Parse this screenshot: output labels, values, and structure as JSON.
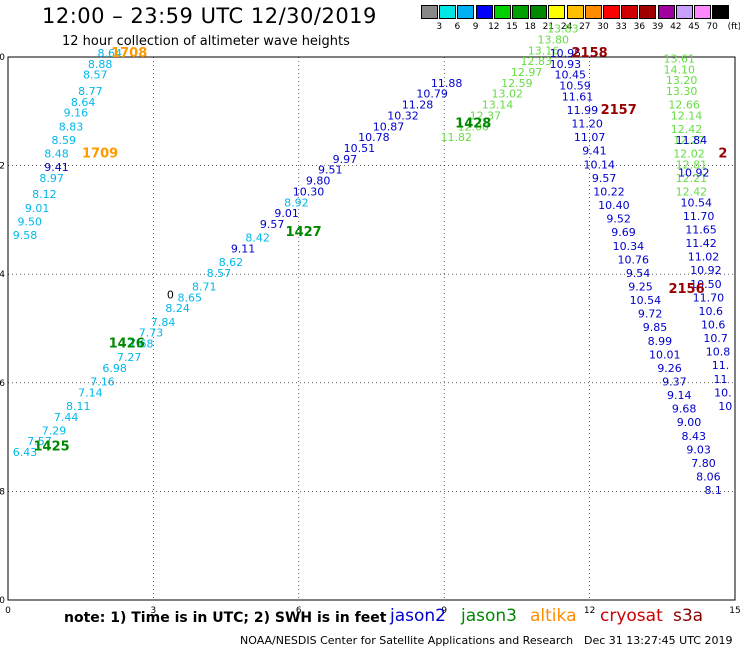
{
  "header": {
    "title": "12:00 – 23:59 UTC 12/30/2019",
    "subtitle": "12 hour collection of altimeter wave heights"
  },
  "colorbar": {
    "unit": "(ft)",
    "labels": [
      "3",
      "6",
      "9",
      "12",
      "15",
      "18",
      "21",
      "24",
      "27",
      "30",
      "33",
      "36",
      "39",
      "42",
      "45",
      "70"
    ],
    "colors": [
      "#888888",
      "#00e5e5",
      "#00b0f0",
      "#0000ff",
      "#00d000",
      "#00a000",
      "#008800",
      "#ffff00",
      "#ffc000",
      "#ff8c00",
      "#ff0000",
      "#d00000",
      "#a00000",
      "#a000a0",
      "#c8a0ff",
      "#ff88ff",
      "#000000"
    ]
  },
  "footer": {
    "note": "note:  1) Time is in UTC;  2) SWH is in feet",
    "legend": [
      {
        "name": "jason2",
        "color": "#0000cc"
      },
      {
        "name": "jason3",
        "color": "#008800"
      },
      {
        "name": "altika",
        "color": "#ff8c00"
      },
      {
        "name": "cryosat",
        "color": "#cc0000"
      },
      {
        "name": "s3a",
        "color": "#880000"
      }
    ],
    "credit": "NOAA/NESDIS Center for Satellite Applications and Research",
    "timestamp": "Dec 31 13:27:45 UTC 2019"
  },
  "chart_data": {
    "type": "scatter",
    "xlabel": "",
    "ylabel": "",
    "xlim": [
      0,
      15
    ],
    "ylim": [
      -60,
      -50
    ],
    "x_ticks": [
      0,
      3,
      6,
      9,
      12,
      15
    ],
    "y_ticks": [
      -50,
      -52,
      -54,
      -56,
      -58,
      -60
    ],
    "grid": true,
    "colors": {
      "cyan": "#00b8e8",
      "blue": "#0000cc",
      "green": "#66dd44",
      "dgreen": "#008800",
      "orange": "#ff9900",
      "dred": "#990000"
    },
    "series": [
      {
        "color": "cyan",
        "points": [
          [
            2.1,
            -50.0,
            "8.64"
          ],
          [
            1.9,
            -50.2,
            "8.88"
          ],
          [
            1.8,
            -50.4,
            "8.57"
          ],
          [
            1.7,
            -50.7,
            "8.77"
          ],
          [
            1.55,
            -50.9,
            "8.64"
          ],
          [
            1.4,
            -51.1,
            "9.16"
          ],
          [
            1.3,
            -51.35,
            "8.83"
          ],
          [
            1.15,
            -51.6,
            "8.59"
          ],
          [
            1.0,
            -51.85,
            "8.48"
          ],
          [
            0.9,
            -52.3,
            "8.97"
          ],
          [
            0.75,
            -52.6,
            "8.12"
          ],
          [
            0.6,
            -52.85,
            "9.01"
          ],
          [
            0.45,
            -53.1,
            "9.50"
          ],
          [
            0.35,
            -53.35,
            "9.58"
          ]
        ]
      },
      {
        "color": "blue",
        "points": [
          [
            1.0,
            -52.1,
            "9.41"
          ]
        ]
      },
      {
        "color": "cyan",
        "points": [
          [
            0.35,
            -57.35,
            "6.43"
          ],
          [
            0.65,
            -57.15,
            "7.57"
          ],
          [
            0.95,
            -56.95,
            "7.29"
          ],
          [
            1.2,
            -56.7,
            "7.44"
          ],
          [
            1.45,
            -56.5,
            "8.11"
          ],
          [
            1.7,
            -56.25,
            "7.14"
          ],
          [
            1.95,
            -56.05,
            "7.16"
          ],
          [
            2.2,
            -55.8,
            "6.98"
          ],
          [
            2.5,
            -55.6,
            "7.27"
          ],
          [
            2.75,
            -55.35,
            "7.68"
          ],
          [
            2.95,
            -55.15,
            "7.73"
          ],
          [
            3.2,
            -54.95,
            "7.84"
          ],
          [
            3.5,
            -54.7,
            "8.24"
          ],
          [
            3.75,
            -54.5,
            "8.65"
          ],
          [
            4.05,
            -54.3,
            "8.71"
          ],
          [
            4.35,
            -54.05,
            "8.57"
          ],
          [
            4.6,
            -53.85,
            "8.62"
          ]
        ]
      },
      {
        "color": "blue",
        "points": [
          [
            4.85,
            -53.6,
            "9.11"
          ]
        ]
      },
      {
        "color": "cyan",
        "points": [
          [
            5.15,
            -53.4,
            "8.42"
          ]
        ]
      },
      {
        "color": "blue",
        "points": [
          [
            5.45,
            -53.15,
            "9.57"
          ],
          [
            5.75,
            -52.95,
            "9.01"
          ]
        ]
      },
      {
        "color": "cyan",
        "points": [
          [
            5.95,
            -52.75,
            "8.92"
          ]
        ]
      },
      {
        "color": "blue",
        "points": [
          [
            6.2,
            -52.55,
            "10.30"
          ],
          [
            6.4,
            -52.35,
            "9.80"
          ],
          [
            6.65,
            -52.15,
            "9.51"
          ],
          [
            6.95,
            -51.95,
            "9.97"
          ],
          [
            7.25,
            -51.75,
            "10.51"
          ],
          [
            7.55,
            -51.55,
            "10.78"
          ],
          [
            7.85,
            -51.35,
            "10.87"
          ],
          [
            8.15,
            -51.15,
            "10.32"
          ],
          [
            8.45,
            -50.95,
            "11.28"
          ],
          [
            8.75,
            -50.75,
            "10.79"
          ],
          [
            9.05,
            -50.55,
            "11.88"
          ]
        ]
      },
      {
        "color": "green",
        "points": [
          [
            9.25,
            -51.55,
            "11.82"
          ],
          [
            9.6,
            -51.35,
            "12.00"
          ],
          [
            9.85,
            -51.15,
            "12.37"
          ],
          [
            10.1,
            -50.95,
            "13.14"
          ],
          [
            10.3,
            -50.75,
            "13.02"
          ],
          [
            10.5,
            -50.55,
            "12.59"
          ],
          [
            10.7,
            -50.35,
            "12.97"
          ],
          [
            10.9,
            -50.15,
            "12.83"
          ],
          [
            11.05,
            -49.95,
            "13.16"
          ],
          [
            11.25,
            -49.75,
            "13.80"
          ],
          [
            11.45,
            -49.55,
            "13.83"
          ]
        ]
      },
      {
        "color": "blue",
        "points": [
          [
            11.5,
            -50.0,
            "10.95"
          ],
          [
            11.5,
            -50.2,
            "10.93"
          ],
          [
            11.6,
            -50.4,
            "10.45"
          ],
          [
            11.7,
            -50.6,
            "10.59"
          ],
          [
            11.75,
            -50.8,
            "11.61"
          ],
          [
            11.85,
            -51.05,
            "11.99"
          ],
          [
            11.95,
            -51.3,
            "11.20"
          ],
          [
            12.0,
            -51.55,
            "11.07"
          ],
          [
            12.1,
            -51.8,
            "9.41"
          ],
          [
            12.2,
            -52.05,
            "10.14"
          ],
          [
            12.3,
            -52.3,
            "9.57"
          ],
          [
            12.4,
            -52.55,
            "10.22"
          ],
          [
            12.5,
            -52.8,
            "10.40"
          ],
          [
            12.6,
            -53.05,
            "9.52"
          ],
          [
            12.7,
            -53.3,
            "9.69"
          ],
          [
            12.8,
            -53.55,
            "10.34"
          ],
          [
            12.9,
            -53.8,
            "10.76"
          ],
          [
            13.0,
            -54.05,
            "9.54"
          ],
          [
            13.05,
            -54.3,
            "9.25"
          ],
          [
            13.15,
            -54.55,
            "10.54"
          ],
          [
            13.25,
            -54.8,
            "9.72"
          ],
          [
            13.35,
            -55.05,
            "9.85"
          ],
          [
            13.45,
            -55.3,
            "8.99"
          ],
          [
            13.55,
            -55.55,
            "10.01"
          ],
          [
            13.65,
            -55.8,
            "9.26"
          ],
          [
            13.75,
            -56.05,
            "9.37"
          ],
          [
            13.85,
            -56.3,
            "9.14"
          ],
          [
            13.95,
            -56.55,
            "9.68"
          ],
          [
            14.05,
            -56.8,
            "9.00"
          ],
          [
            14.15,
            -57.05,
            "8.43"
          ],
          [
            14.25,
            -57.3,
            "9.03"
          ],
          [
            14.35,
            -57.55,
            "7.80"
          ],
          [
            14.45,
            -57.8,
            "8.06"
          ],
          [
            14.55,
            -58.05,
            "8.1"
          ]
        ]
      },
      {
        "color": "green",
        "points": [
          [
            13.85,
            -50.1,
            "13.61"
          ],
          [
            13.85,
            -50.3,
            "14.10"
          ],
          [
            13.9,
            -50.5,
            "13.20"
          ],
          [
            13.9,
            -50.7,
            "13.30"
          ],
          [
            13.95,
            -50.95,
            "12.66"
          ],
          [
            14.0,
            -51.15,
            "12.14"
          ],
          [
            14.0,
            -51.4,
            "12.42"
          ],
          [
            14.05,
            -51.6,
            "12.27"
          ],
          [
            14.05,
            -51.85,
            "12.02"
          ],
          [
            14.1,
            -52.05,
            "12.81"
          ],
          [
            14.1,
            -52.3,
            "12.21"
          ],
          [
            14.1,
            -52.55,
            "12.42"
          ]
        ]
      },
      {
        "color": "blue",
        "points": [
          [
            14.1,
            -51.6,
            "11.84"
          ],
          [
            14.15,
            -52.2,
            "10.92"
          ],
          [
            14.2,
            -52.75,
            "10.54"
          ],
          [
            14.25,
            -53.0,
            "11.70"
          ],
          [
            14.3,
            -53.25,
            "11.65"
          ],
          [
            14.3,
            -53.5,
            "11.42"
          ],
          [
            14.35,
            -53.75,
            "11.02"
          ],
          [
            14.4,
            -54.0,
            "10.92"
          ],
          [
            14.4,
            -54.25,
            "10.50"
          ],
          [
            14.45,
            -54.5,
            "11.70"
          ],
          [
            14.5,
            -54.75,
            "10.6"
          ],
          [
            14.55,
            -55.0,
            "10.6"
          ],
          [
            14.6,
            -55.25,
            "10.7"
          ],
          [
            14.65,
            -55.5,
            "10.8"
          ],
          [
            14.7,
            -55.75,
            "11."
          ],
          [
            14.7,
            -56.0,
            "11"
          ],
          [
            14.75,
            -56.25,
            "10."
          ],
          [
            14.8,
            -56.5,
            "10"
          ]
        ]
      }
    ],
    "time_labels": [
      {
        "x": 2.5,
        "y": -50.0,
        "text": "1708",
        "color": "orange"
      },
      {
        "x": 1.9,
        "y": -51.85,
        "text": "1709",
        "color": "orange"
      },
      {
        "x": 12.0,
        "y": -50.0,
        "text": "2158",
        "color": "dred"
      },
      {
        "x": 12.6,
        "y": -51.05,
        "text": "2157",
        "color": "dred"
      },
      {
        "x": 14.0,
        "y": -54.35,
        "text": "2156",
        "color": "dred"
      },
      {
        "x": 14.75,
        "y": -51.85,
        "text": "2",
        "color": "dred"
      },
      {
        "x": 9.6,
        "y": -51.3,
        "text": "1428",
        "color": "dgreen"
      },
      {
        "x": 6.1,
        "y": -53.3,
        "text": "1427",
        "color": "dgreen"
      },
      {
        "x": 2.45,
        "y": -55.35,
        "text": "1426",
        "color": "dgreen"
      },
      {
        "x": 0.9,
        "y": -57.25,
        "text": "1425",
        "color": "dgreen"
      }
    ],
    "misc_labels": [
      {
        "x": 3.35,
        "y": -54.45,
        "text": "0",
        "color": "#000000"
      }
    ]
  }
}
